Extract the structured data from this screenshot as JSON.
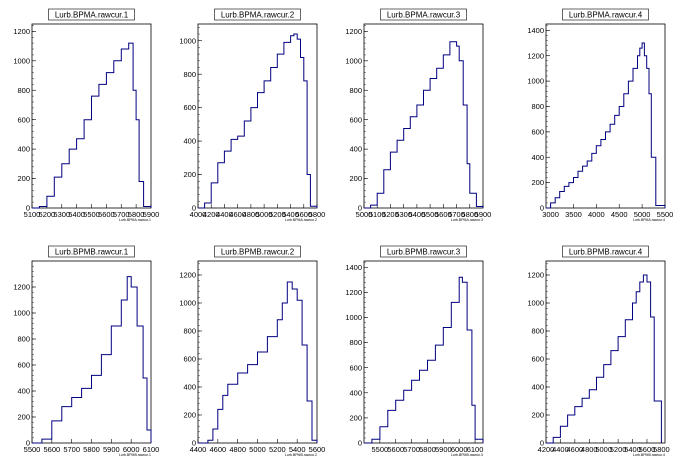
{
  "chart_data": [
    {
      "type": "step",
      "title": "Lurb.BPMA.rawcur.1",
      "xlabel": "Lurb.BPMA.rawcur.1",
      "ylim": [
        0,
        1250
      ],
      "xlim": [
        5100,
        5900
      ],
      "yticks": [
        0,
        200,
        400,
        600,
        800,
        1000,
        1200
      ],
      "xticks": [
        5100,
        5200,
        5300,
        5400,
        5500,
        5600,
        5700,
        5800,
        5900
      ],
      "x": [
        5100,
        5150,
        5200,
        5250,
        5300,
        5350,
        5400,
        5450,
        5500,
        5550,
        5600,
        5650,
        5700,
        5750,
        5780,
        5800,
        5820,
        5850,
        5900
      ],
      "y": [
        0,
        10,
        80,
        210,
        300,
        400,
        470,
        600,
        760,
        840,
        920,
        1000,
        1080,
        1120,
        800,
        600,
        180,
        10,
        0
      ]
    },
    {
      "type": "step",
      "title": "Lurb.BPMA.rawcur.2",
      "xlabel": "Lurb.BPMA.rawcur.2",
      "ylim": [
        0,
        1100
      ],
      "xlim": [
        4000,
        5800
      ],
      "yticks": [
        0,
        200,
        400,
        600,
        800,
        1000
      ],
      "xticks": [
        4000,
        4200,
        4400,
        4600,
        4800,
        5000,
        5200,
        5400,
        5600,
        5800
      ],
      "x": [
        4000,
        4100,
        4200,
        4300,
        4400,
        4500,
        4600,
        4700,
        4800,
        4900,
        5000,
        5100,
        5200,
        5300,
        5400,
        5450,
        5500,
        5550,
        5600,
        5650,
        5700,
        5800
      ],
      "y": [
        0,
        30,
        150,
        270,
        340,
        410,
        430,
        520,
        600,
        690,
        760,
        840,
        920,
        990,
        1030,
        1040,
        1010,
        900,
        760,
        200,
        10,
        0
      ]
    },
    {
      "type": "step",
      "title": "Lurb.BPMA.rawcur.3",
      "xlabel": "Lurb.BPMA.rawcur.3",
      "ylim": [
        0,
        1250
      ],
      "xlim": [
        5000,
        5900
      ],
      "yticks": [
        0,
        200,
        400,
        600,
        800,
        1000,
        1200
      ],
      "xticks": [
        5000,
        5100,
        5200,
        5300,
        5400,
        5500,
        5600,
        5700,
        5800,
        5900
      ],
      "x": [
        5000,
        5050,
        5100,
        5150,
        5200,
        5250,
        5300,
        5350,
        5400,
        5450,
        5500,
        5550,
        5600,
        5650,
        5700,
        5720,
        5750,
        5780,
        5800,
        5850,
        5900
      ],
      "y": [
        0,
        20,
        100,
        260,
        380,
        460,
        540,
        620,
        700,
        800,
        880,
        950,
        1040,
        1130,
        1100,
        1000,
        700,
        300,
        100,
        10,
        0
      ]
    },
    {
      "type": "step",
      "title": "Lurb.BPMA.rawcur.4",
      "xlabel": "Lurb.BPMA.rawcur.4",
      "ylim": [
        0,
        1450
      ],
      "xlim": [
        2900,
        5500
      ],
      "yticks": [
        0,
        200,
        400,
        600,
        800,
        1000,
        1200,
        1400
      ],
      "xticks": [
        3000,
        3500,
        4000,
        4500,
        5000,
        5500
      ],
      "x": [
        2900,
        3000,
        3100,
        3200,
        3300,
        3400,
        3500,
        3600,
        3700,
        3800,
        3900,
        4000,
        4100,
        4200,
        4300,
        4400,
        4500,
        4600,
        4700,
        4800,
        4900,
        4950,
        5000,
        5050,
        5100,
        5150,
        5200,
        5300,
        5500
      ],
      "y": [
        0,
        40,
        80,
        130,
        170,
        200,
        240,
        290,
        330,
        370,
        430,
        490,
        540,
        600,
        660,
        730,
        800,
        900,
        1000,
        1100,
        1200,
        1260,
        1300,
        1200,
        1100,
        900,
        400,
        20,
        0
      ]
    },
    {
      "type": "step",
      "title": "Lurb.BPMB.rawcur.1",
      "xlabel": "Lurb.BPMB.rawcur.1",
      "ylim": [
        0,
        1400
      ],
      "xlim": [
        5500,
        6100
      ],
      "yticks": [
        0,
        200,
        400,
        600,
        800,
        1000,
        1200
      ],
      "xticks": [
        5500,
        5600,
        5700,
        5800,
        5900,
        6000,
        6100
      ],
      "x": [
        5500,
        5550,
        5600,
        5650,
        5700,
        5750,
        5800,
        5850,
        5900,
        5950,
        5980,
        6000,
        6030,
        6060,
        6080,
        6100
      ],
      "y": [
        0,
        30,
        170,
        280,
        350,
        420,
        520,
        680,
        900,
        1100,
        1280,
        1200,
        900,
        500,
        100,
        0
      ]
    },
    {
      "type": "step",
      "title": "Lurb.BPMB.rawcur.2",
      "xlabel": "Lurb.BPMB.rawcur.2",
      "ylim": [
        0,
        1300
      ],
      "xlim": [
        4400,
        5600
      ],
      "yticks": [
        0,
        200,
        400,
        600,
        800,
        1000,
        1200
      ],
      "xticks": [
        4400,
        4600,
        4800,
        5000,
        5200,
        5400,
        5600
      ],
      "x": [
        4400,
        4500,
        4550,
        4600,
        4650,
        4700,
        4800,
        4900,
        5000,
        5100,
        5200,
        5250,
        5300,
        5350,
        5400,
        5450,
        5500,
        5550,
        5600
      ],
      "y": [
        0,
        20,
        100,
        240,
        340,
        420,
        500,
        560,
        650,
        760,
        880,
        1000,
        1150,
        1100,
        1020,
        700,
        300,
        20,
        0
      ]
    },
    {
      "type": "step",
      "title": "Lurb.BPMB.rawcur.3",
      "xlabel": "Lurb.BPMB.rawcur.3",
      "ylim": [
        0,
        1450
      ],
      "xlim": [
        5400,
        6150
      ],
      "yticks": [
        0,
        200,
        400,
        600,
        800,
        1000,
        1200,
        1400
      ],
      "xticks": [
        5500,
        5600,
        5700,
        5800,
        5900,
        6000,
        6100
      ],
      "x": [
        5400,
        5450,
        5500,
        5550,
        5600,
        5650,
        5700,
        5750,
        5800,
        5850,
        5900,
        5950,
        6000,
        6020,
        6050,
        6080,
        6100,
        6150
      ],
      "y": [
        0,
        30,
        130,
        260,
        340,
        420,
        500,
        580,
        660,
        780,
        920,
        1120,
        1320,
        1280,
        900,
        300,
        30,
        0
      ]
    },
    {
      "type": "step",
      "title": "Lurb.BPMB.rawcur.4",
      "xlabel": "Lurb.BPMB.rawcur.4",
      "ylim": [
        0,
        1300
      ],
      "xlim": [
        4200,
        5850
      ],
      "yticks": [
        0,
        200,
        400,
        600,
        800,
        1000,
        1200
      ],
      "xticks": [
        4200,
        4400,
        4600,
        4800,
        5000,
        5200,
        5400,
        5600,
        5800
      ],
      "x": [
        4200,
        4300,
        4400,
        4500,
        4600,
        4700,
        4800,
        4900,
        5000,
        5100,
        5200,
        5300,
        5400,
        5450,
        5500,
        5550,
        5600,
        5650,
        5700,
        5800
      ],
      "y": [
        0,
        40,
        120,
        200,
        260,
        320,
        380,
        470,
        560,
        660,
        760,
        880,
        1000,
        1080,
        1150,
        1200,
        1150,
        900,
        300,
        0
      ]
    }
  ]
}
